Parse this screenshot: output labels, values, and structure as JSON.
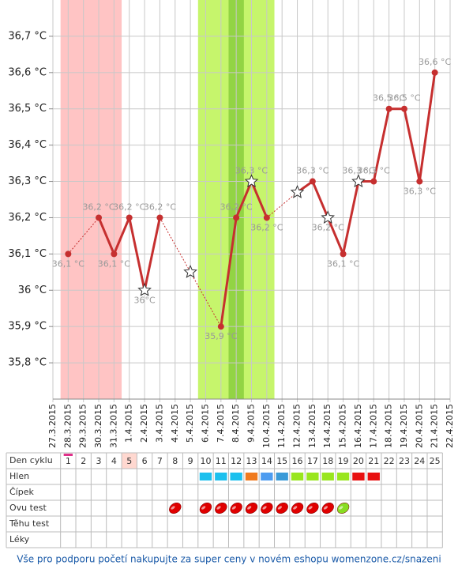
{
  "chart_data": {
    "type": "line",
    "categories": [
      "27.3.2015",
      "28.3.2015",
      "29.3.2015",
      "30.3.2015",
      "31.3.2015",
      "1.4.2015",
      "2.4.2015",
      "3.4.2015",
      "4.4.2015",
      "5.4.2015",
      "6.4.2015",
      "7.4.2015",
      "8.4.2015",
      "9.4.2015",
      "10.4.2015",
      "11.4.2015",
      "12.4.2015",
      "13.4.2015",
      "14.4.2015",
      "15.4.2015",
      "16.4.2015",
      "17.4.2015",
      "18.4.2015",
      "19.4.2015",
      "20.4.2015",
      "21.4.2015",
      "22.4.2015"
    ],
    "values": [
      null,
      36.1,
      null,
      36.2,
      36.1,
      36.2,
      36.0,
      36.2,
      null,
      36.05,
      null,
      35.9,
      36.2,
      36.3,
      36.2,
      null,
      36.27,
      36.3,
      36.2,
      36.1,
      36.3,
      36.3,
      36.5,
      36.5,
      36.3,
      36.6,
      null
    ],
    "value_labels": [
      null,
      "36,1 °C",
      null,
      "36,2 °C",
      "36,1 °C",
      "36,2 °C",
      "36°C",
      "36,2 °C",
      null,
      null,
      null,
      "35,9 °C",
      "36,2 °C",
      "36,3 °C",
      "36,2 °C",
      null,
      null,
      "36,3 °C",
      "36,2 °C",
      "36,1 °C",
      "36,3 °C",
      "36,3 °C",
      "36,5 °C",
      "36,5 °C",
      "36,3 °C",
      "36,6 °C",
      null
    ],
    "markers": [
      null,
      "circle",
      null,
      "circle",
      "circle",
      "circle",
      "star",
      "circle",
      null,
      "star",
      null,
      "circle",
      "circle",
      "star",
      "circle",
      null,
      "star",
      "circle",
      "star",
      "circle",
      "star",
      "circle",
      "circle",
      "circle",
      "circle",
      "circle",
      null
    ],
    "color": "#c62f2f",
    "ylim": [
      35.7,
      36.8
    ],
    "yticks": [
      {
        "value": 35.8,
        "label": "35,8 °C"
      },
      {
        "value": 35.9,
        "label": "35,9 °C"
      },
      {
        "value": 36.0,
        "label": "36 °C"
      },
      {
        "value": 36.1,
        "label": "36,1 °C"
      },
      {
        "value": 36.2,
        "label": "36,2 °C"
      },
      {
        "value": 36.3,
        "label": "36,3 °C"
      },
      {
        "value": 36.4,
        "label": "36,4 °C"
      },
      {
        "value": 36.5,
        "label": "36,5 °C"
      },
      {
        "value": 36.6,
        "label": "36,6 °C"
      },
      {
        "value": 36.7,
        "label": "36,7 °C"
      }
    ],
    "grid": true
  },
  "cycle_table": {
    "row_labels": [
      "Den cyklu",
      "Hlen",
      "Čípek",
      "Ovu test",
      "Těhu test",
      "Léky"
    ],
    "days": [
      "1",
      "2",
      "3",
      "4",
      "5",
      "6",
      "7",
      "8",
      "9",
      "10",
      "11",
      "12",
      "13",
      "14",
      "15",
      "16",
      "17",
      "18",
      "19",
      "20",
      "21",
      "22",
      "23",
      "24",
      "25"
    ],
    "hlen_colors": [
      null,
      null,
      null,
      null,
      null,
      null,
      null,
      null,
      null,
      "#1cc0ee",
      "#1cc0ee",
      "#1cc0ee",
      "#f07a1e",
      "#4d9cf0",
      "#3a9ad8",
      "#99e61e",
      "#99e61e",
      "#99e61e",
      "#99e61e",
      "#e81010",
      "#e81010",
      null,
      null,
      null,
      null
    ],
    "ovu_test_colors": [
      null,
      null,
      null,
      null,
      null,
      null,
      null,
      "#e00000",
      null,
      "#e00000",
      "#e00000",
      "#e00000",
      "#e00000",
      "#e00000",
      "#e00000",
      "#e00000",
      "#e00000",
      "#e00000",
      "#88dd22",
      null,
      null,
      null,
      null,
      null,
      null
    ]
  },
  "footer": "Vše pro podporu početí nakupujte za super ceny v novém eshopu womenzone.cz/snazeni"
}
